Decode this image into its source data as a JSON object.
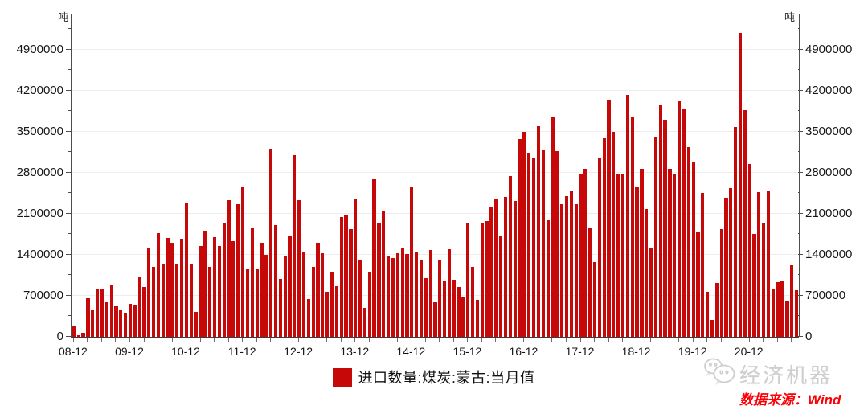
{
  "chart_data": {
    "type": "bar",
    "series_name": "进口数量:煤炭:蒙古:当月值",
    "unit": "吨",
    "x_start": "2008-12",
    "frequency": "monthly",
    "values": [
      190000,
      25000,
      70000,
      660000,
      450000,
      805000,
      805000,
      590000,
      890000,
      520000,
      470000,
      410000,
      560000,
      535000,
      1020000,
      845000,
      1520000,
      1190000,
      1770000,
      1240000,
      1690000,
      1600000,
      1250000,
      1680000,
      2280000,
      1240000,
      430000,
      1550000,
      1810000,
      1190000,
      1700000,
      1550000,
      1930000,
      2330000,
      1630000,
      2270000,
      2560000,
      1150000,
      1860000,
      1150000,
      1610000,
      1400000,
      3210000,
      1910000,
      990000,
      1390000,
      1730000,
      3100000,
      2330000,
      1450000,
      645000,
      1190000,
      1610000,
      1430000,
      765000,
      1110000,
      865000,
      2050000,
      2070000,
      1840000,
      2340000,
      1300000,
      490000,
      1110000,
      2690000,
      1940000,
      2160000,
      1370000,
      1340000,
      1430000,
      1510000,
      1410000,
      2560000,
      1440000,
      1300000,
      1000000,
      1480000,
      590000,
      1320000,
      956000,
      1500000,
      970000,
      855000,
      682000,
      1930000,
      1200000,
      627000,
      1950000,
      1980000,
      2220000,
      2340000,
      1720000,
      2390000,
      2740000,
      2320000,
      3370000,
      3500000,
      3140000,
      3050000,
      3600000,
      3190000,
      1990000,
      3750000,
      3170000,
      2270000,
      2400000,
      2500000,
      2260000,
      2770000,
      2870000,
      1860000,
      1270000,
      3060000,
      3390000,
      4050000,
      3500000,
      2770000,
      2790000,
      4130000,
      3740000,
      2570000,
      2860000,
      2180000,
      1520000,
      3420000,
      3950000,
      3710000,
      2870000,
      2780000,
      4020000,
      3900000,
      3240000,
      2980000,
      1800000,
      2460000,
      770000,
      290000,
      920000,
      1840000,
      2370000,
      2540000,
      3580000,
      5190000,
      3870000,
      2950000,
      1760000,
      2470000,
      1940000,
      2480000,
      820000,
      930000,
      960000,
      620000,
      1220000,
      800000
    ],
    "x_tick_labels": [
      "08-12",
      "09-12",
      "10-12",
      "11-12",
      "12-12",
      "13-12",
      "14-12",
      "15-12",
      "16-12",
      "17-12",
      "18-12",
      "19-12",
      "20-12"
    ],
    "x_tick_every_months": 12,
    "minor_x_tick_months": 3,
    "y_ticks": [
      0,
      700000,
      1400000,
      2100000,
      2800000,
      3500000,
      4200000,
      4900000
    ],
    "y_minor_step": 350000,
    "y_axis_max": 5500000,
    "grid": "horizontal-major-only",
    "legend_position": "bottom-center",
    "bar_color": "#c70808",
    "title": ""
  },
  "axis": {
    "unit_left": "吨",
    "unit_right": "吨"
  },
  "legend": {
    "label": "进口数量:煤炭:蒙古:当月值",
    "swatch_color": "#c70808"
  },
  "watermark": {
    "text": "经济机器"
  },
  "source": {
    "text": "数据来源：Wind"
  }
}
